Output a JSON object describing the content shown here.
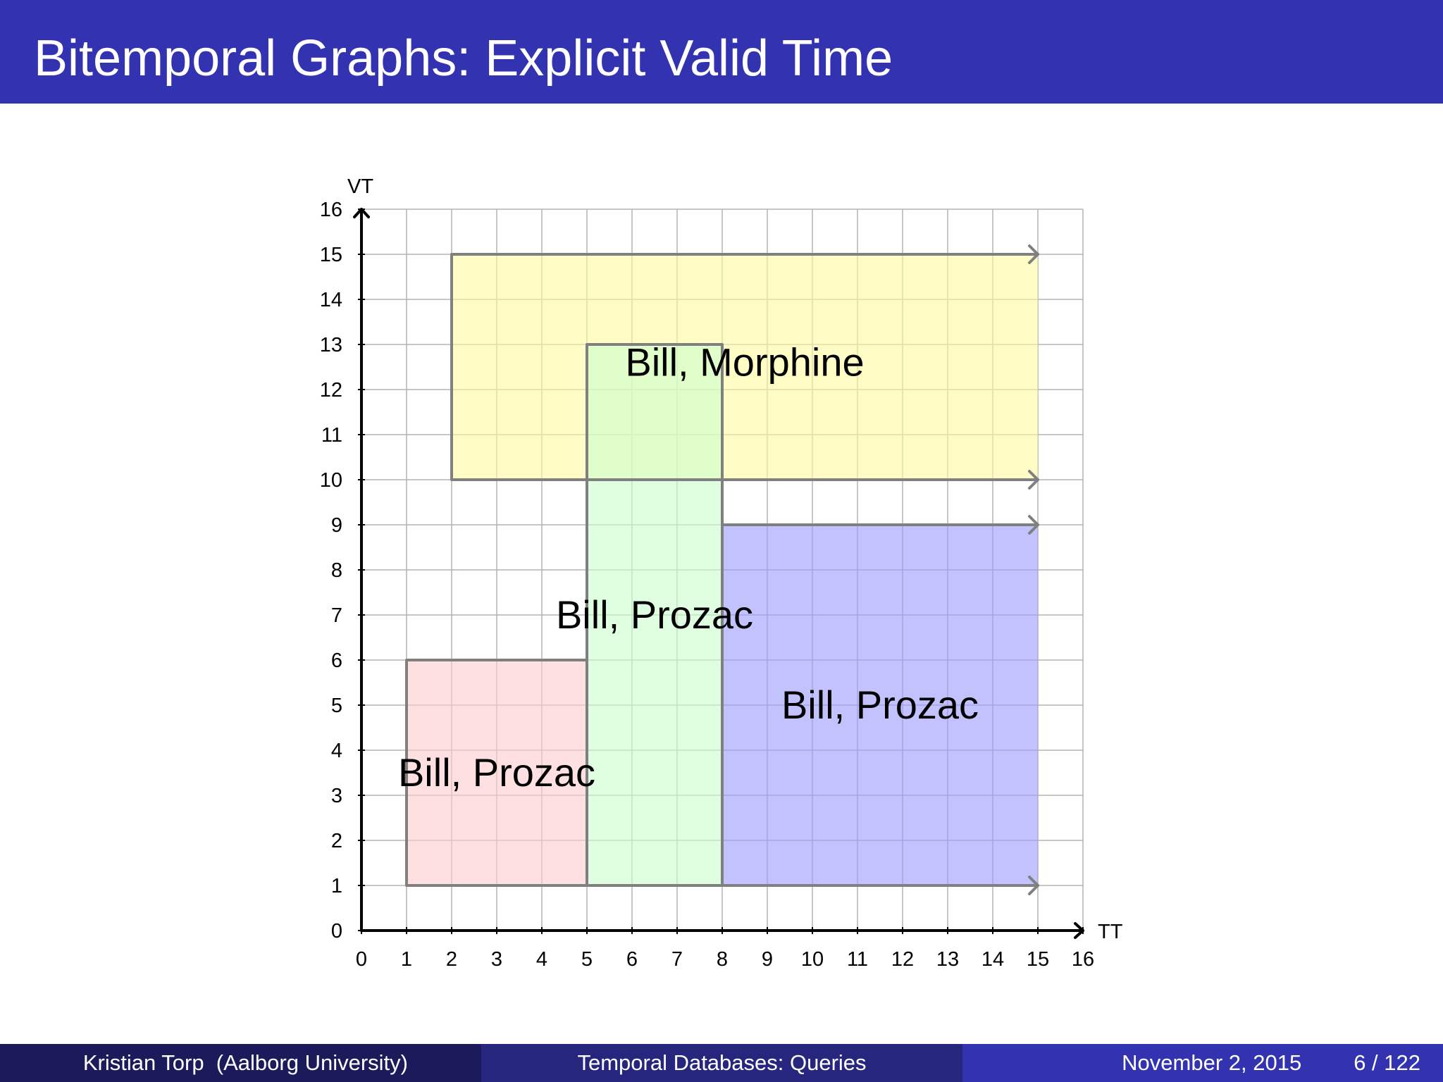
{
  "slide": {
    "title": "Bitemporal Graphs: Explicit Valid Time"
  },
  "footer": {
    "author": "Kristian Torp",
    "affiliation": "(Aalborg University)",
    "topic": "Temporal Databases: Queries",
    "date": "November 2, 2015",
    "page": "6 / 122"
  },
  "diagram": {
    "x_axis_label": "TT",
    "y_axis_label": "VT",
    "x_ticks": [
      "0",
      "1",
      "2",
      "3",
      "4",
      "5",
      "6",
      "7",
      "8",
      "9",
      "10",
      "11",
      "12",
      "13",
      "14",
      "15",
      "16"
    ],
    "y_ticks": [
      "0",
      "1",
      "2",
      "3",
      "4",
      "5",
      "6",
      "7",
      "8",
      "9",
      "10",
      "11",
      "12",
      "13",
      "14",
      "15",
      "16"
    ],
    "x_range": [
      0,
      16
    ],
    "y_range": [
      0,
      16
    ],
    "regions": [
      {
        "label": "Bill, Morphine",
        "tt_start": 2,
        "tt_end": 15,
        "vt_start": 10,
        "vt_end": 15,
        "open_ended": true,
        "fill": "#fffaa0",
        "label_at": [
          8.5,
          12.6
        ]
      },
      {
        "label": "Bill, Prozac",
        "tt_start": 1,
        "tt_end": 5,
        "vt_start": 1,
        "vt_end": 6,
        "open_ended": false,
        "fill": "#ffcccc",
        "label_at": [
          3,
          3.5
        ]
      },
      {
        "label": "Bill, Prozac",
        "tt_start": 5,
        "tt_end": 8,
        "vt_start": 1,
        "vt_end": 13,
        "open_ended": false,
        "fill": "#ccffcc",
        "label_at": [
          6.5,
          7
        ]
      },
      {
        "label": "Bill, Prozac",
        "tt_start": 8,
        "tt_end": 15,
        "vt_start": 1,
        "vt_end": 9,
        "open_ended": true,
        "fill": "#9999ff",
        "label_at": [
          11.5,
          5
        ]
      }
    ]
  }
}
